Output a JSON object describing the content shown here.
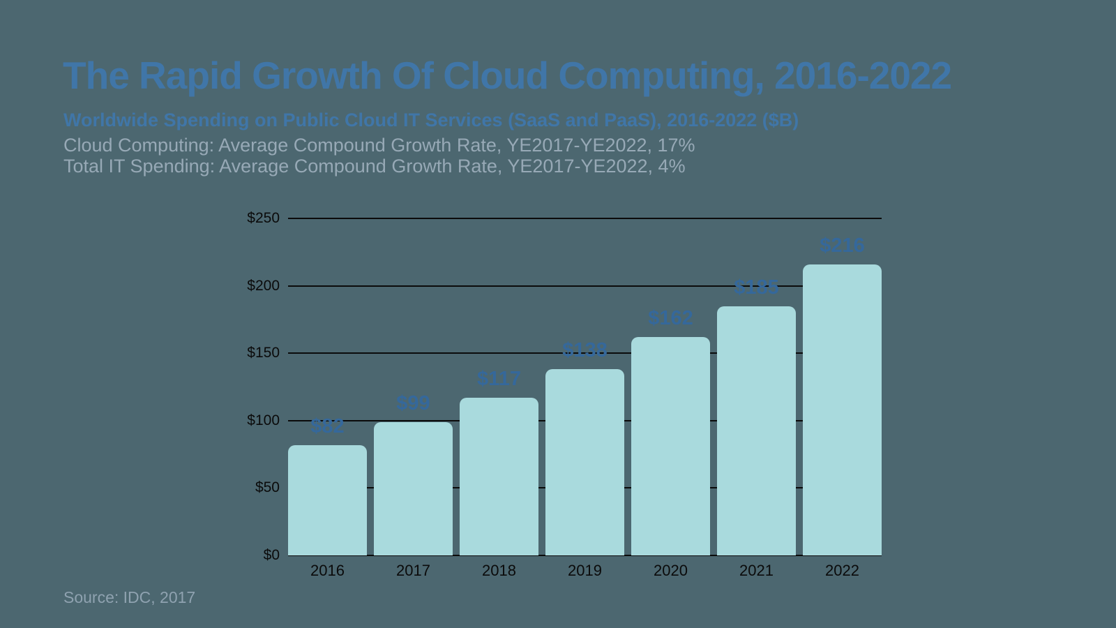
{
  "header": {
    "title": "The Rapid Growth Of Cloud Computing, 2016-2022",
    "subtitle": "Worldwide Spending on Public Cloud IT Services (SaaS and PaaS), 2016-2022 ($B)",
    "notes": [
      "Cloud Computing: Average Compound Growth Rate, YE2017-YE2022, 17%",
      "Total IT Spending: Average Compound Growth Rate, YE2017-YE2022, 4%"
    ]
  },
  "footer": {
    "source": "Source: IDC, 2017"
  },
  "colors": {
    "background": "#4C6770",
    "bar": "#A9DADD",
    "title": "#4076A8",
    "subtitle": "#4076A8",
    "note": "#97A9B6",
    "source": "#8FA2B0",
    "bar_label": "#35689B",
    "axis_text": "#0B0B0B",
    "gridline": "#0B0B0B"
  },
  "chart_data": {
    "type": "bar",
    "categories": [
      "2016",
      "2017",
      "2018",
      "2019",
      "2020",
      "2021",
      "2022"
    ],
    "values": [
      82,
      99,
      117,
      138,
      162,
      185,
      216
    ],
    "bar_labels": [
      "$82",
      "$99",
      "$117",
      "$138",
      "$162",
      "$185",
      "$216"
    ],
    "title": "Worldwide Spending on Public Cloud IT Services (SaaS and PaaS), 2016-2022 ($B)",
    "xlabel": "",
    "ylabel": "",
    "ylim": [
      0,
      250
    ],
    "yticks": [
      0,
      50,
      100,
      150,
      200,
      250
    ],
    "ytick_labels": [
      "$0",
      "$50",
      "$100",
      "$150",
      "$200",
      "$250"
    ],
    "grid": true,
    "gridlines_behind_bars": true,
    "legend": false
  }
}
